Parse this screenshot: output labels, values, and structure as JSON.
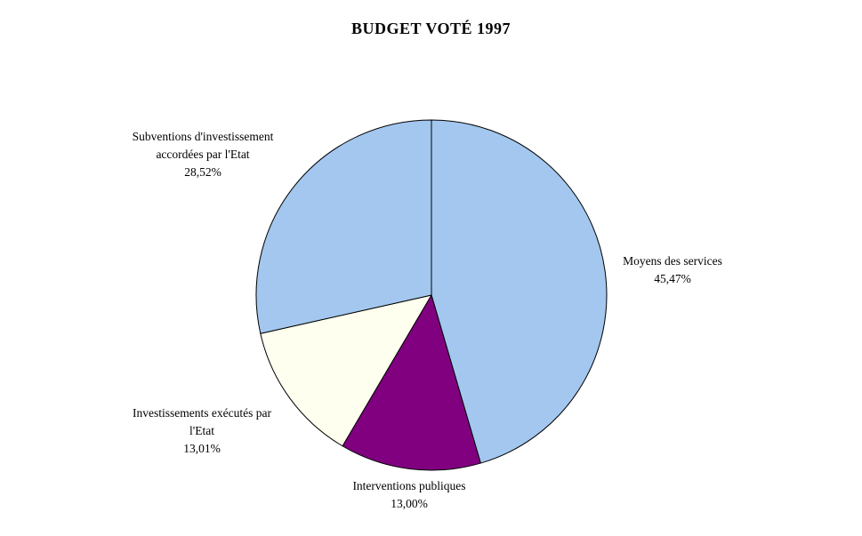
{
  "chart_data": {
    "type": "pie",
    "title": "BUDGET VOTÉ 1997",
    "legend": "none",
    "start_angle_deg": 0,
    "direction": "clockwise",
    "stroke_color": "#000000",
    "slices": [
      {
        "id": "moyens-des-services",
        "label": "Moyens des services",
        "value": 45.47,
        "pct_label": "45,47%",
        "color": "#A3C7EF",
        "label_lines": [
          "Moyens des services",
          "45,47%"
        ]
      },
      {
        "id": "interventions-publiques",
        "label": "Interventions publiques",
        "value": 13.0,
        "pct_label": "13,00%",
        "color": "#800080",
        "label_lines": [
          "Interventions publiques",
          "13,00%"
        ]
      },
      {
        "id": "investissements-executes-par-l-etat",
        "label": "Investissements exécutés par l'Etat",
        "value": 13.01,
        "pct_label": "13,01%",
        "color": "#FFFFEF",
        "label_lines": [
          "Investissements exécutés par",
          "l'Etat",
          "13,01%"
        ]
      },
      {
        "id": "subventions-d-investissement-accordees-par-l-etat",
        "label": "Subventions d'investissement accordées par l'Etat",
        "value": 28.52,
        "pct_label": "28,52%",
        "color": "#A3C7EF",
        "label_lines": [
          "Subventions d'investissement",
          "accordées par l'Etat",
          "28,52%"
        ]
      }
    ]
  }
}
